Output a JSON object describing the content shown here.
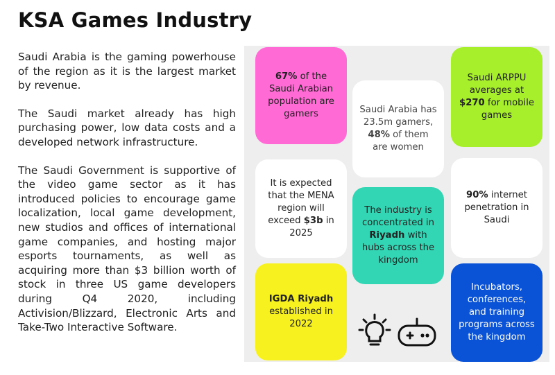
{
  "header": {
    "title": "KSA Games Industry"
  },
  "body_text": {
    "paragraphs": [
      "Saudi Arabia is the gaming powerhouse of the region as it is the largest market by revenue.",
      "The Saudi market already has high purchasing power, low data costs and a developed network infrastructure.",
      "The Saudi Government is supportive of the video game sector as it has introduced policies to encourage game localization, local game development, new studios and offices of international game companies, and hosting major esports tournaments, as well as acquiring more than $3 billion worth of stock in three US game developers during Q4 2020, including Activision/Blizzard, Electronic Arts and Take-Two Interactive Software."
    ]
  },
  "cards": {
    "gamers_pct": {
      "bold": "67%",
      "rest": " of the Saudi Arabian population are gamers",
      "color": "#ff6ad5"
    },
    "gamers_count": {
      "pre": "Saudi Arabia has 23.5m gamers, ",
      "bold": "48%",
      "post": " of them are women",
      "color": "#ffffff"
    },
    "arppu": {
      "pre": "Saudi ARPPU averages at ",
      "bold": "$270",
      "post": " for mobile games",
      "color": "#a6ef2a"
    },
    "mena": {
      "pre": "It is expected that the MENA region will exceed ",
      "bold": "$3b",
      "post": " in 2025",
      "color": "#ffffff"
    },
    "riyadh": {
      "pre": "The industry is concentrated in ",
      "bold": "Riyadh",
      "post": " with hubs across the kingdom",
      "color": "#33d6b4"
    },
    "internet": {
      "bold": "90%",
      "rest": " internet penetration in Saudi",
      "color": "#ffffff"
    },
    "igda": {
      "bold": "IGDA Riyadh",
      "rest": "established in 2022",
      "color": "#f7f21f"
    },
    "incubators": {
      "text": "Incubators, conferences, and training programs across the kingdom",
      "color": "#0a52d6"
    }
  },
  "icons": [
    "lightbulb-icon",
    "gamepad-icon"
  ]
}
